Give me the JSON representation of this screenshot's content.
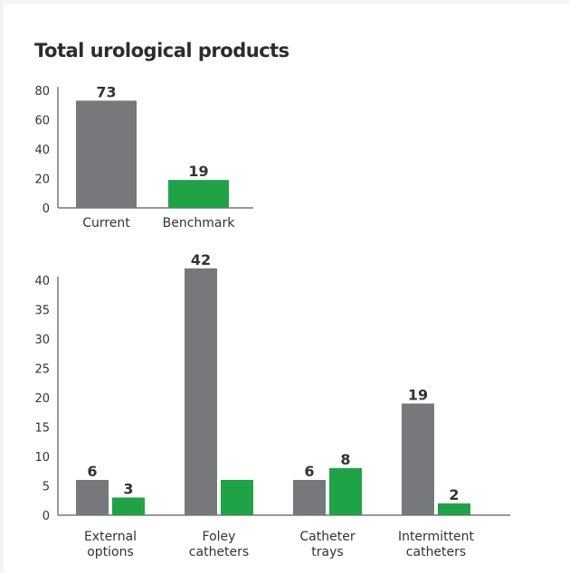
{
  "title": "Total urological products",
  "colors": {
    "current": "#77787b",
    "benchmark": "#1fa347"
  },
  "chart_data": [
    {
      "type": "bar",
      "categories": [
        "Current",
        "Benchmark"
      ],
      "values": [
        73,
        19
      ],
      "value_labels": [
        "73",
        "19"
      ],
      "bar_colors": [
        "#77787b",
        "#1fa347"
      ],
      "yticks": [
        0,
        20,
        40,
        60,
        80
      ],
      "ylim": [
        0,
        80
      ]
    },
    {
      "type": "bar",
      "categories": [
        [
          "External",
          "options"
        ],
        [
          "Foley",
          "catheters"
        ],
        [
          "Catheter",
          "trays"
        ],
        [
          "Intermittent",
          "catheters"
        ]
      ],
      "series": [
        {
          "values": [
            6,
            42,
            6,
            19
          ],
          "value_labels": [
            "6",
            "42",
            "6",
            "19"
          ],
          "color": "#77787b"
        },
        {
          "values": [
            3,
            6,
            8,
            2
          ],
          "value_labels": [
            "3",
            "",
            "8",
            "2"
          ],
          "color": "#1fa347"
        }
      ],
      "yticks": [
        0,
        5,
        10,
        15,
        20,
        25,
        30,
        35,
        40
      ],
      "ylim": [
        0,
        40
      ]
    }
  ]
}
